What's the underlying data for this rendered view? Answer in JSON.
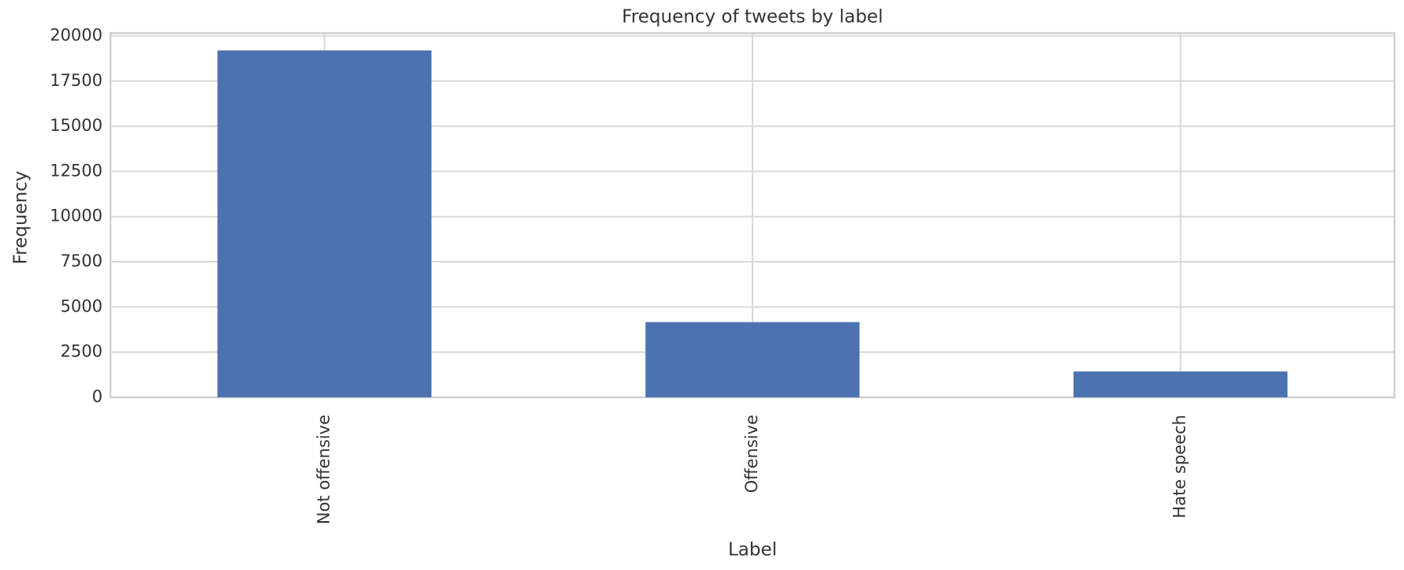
{
  "chart_data": {
    "type": "bar",
    "title": "Frequency of tweets by label",
    "x_label": "Label",
    "y_label": "Frequency",
    "categories": [
      "Not offensive",
      "Offensive",
      "Hate speech"
    ],
    "values": [
      19190,
      4163,
      1430
    ],
    "color": "#4c72b0",
    "ylim": [
      0,
      20150
    ],
    "yticks": [
      0,
      2500,
      5000,
      7500,
      10000,
      12500,
      15000,
      17500,
      20000
    ],
    "grid": true
  }
}
